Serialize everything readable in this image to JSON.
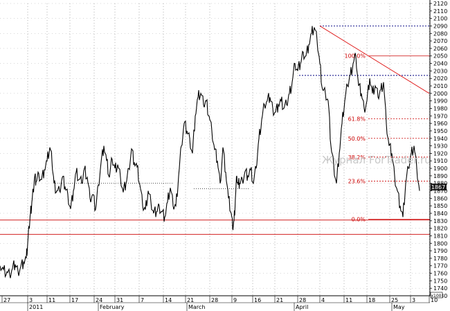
{
  "chart_data": {
    "type": "line",
    "title": "",
    "xlabel": "",
    "ylabel": "",
    "ylim": [
      1730,
      2120
    ],
    "yticks": [
      1730,
      1740,
      1750,
      1760,
      1770,
      1780,
      1790,
      1800,
      1810,
      1820,
      1830,
      1840,
      1850,
      1860,
      1870,
      1880,
      1890,
      1900,
      1910,
      1920,
      1930,
      1940,
      1950,
      1960,
      1970,
      1980,
      1990,
      2000,
      2010,
      2020,
      2030,
      2040,
      2050,
      2060,
      2070,
      2080,
      2090,
      2100,
      2110,
      2120
    ],
    "yticks_labels": [
      "1730",
      "1740",
      "1750",
      "1760",
      "1770",
      "1780",
      "1790",
      "1800",
      "1810",
      "1820",
      "1830",
      "1840",
      "1850",
      "1860",
      "1870",
      "1880",
      "1890",
      "1900",
      "1910",
      "1920",
      "1930",
      "1940",
      "1950",
      "1960",
      "1970",
      "1980",
      "1990",
      "2000",
      "2010",
      "2020",
      "2030",
      "2040",
      "2050",
      "2060",
      "2070",
      "2080",
      "2090",
      "2100",
      "2110",
      "2120"
    ],
    "x_day_labels": [
      "27",
      "3",
      "11",
      "17",
      "24",
      "31",
      "7",
      "14",
      "21",
      "28",
      "9",
      "16",
      "21",
      "28",
      "4",
      "11",
      "18",
      "25",
      "3",
      "10"
    ],
    "x_month_labels": [
      "2011",
      "February",
      "March",
      "April",
      "May"
    ],
    "last_price_label": "1867",
    "scale_label": "x100",
    "watermark": "Журнал ForTrader.ru",
    "series": [
      {
        "x": [
          0,
          5,
          10,
          14,
          18,
          22,
          26,
          30,
          34,
          38,
          40,
          42,
          44,
          46,
          48,
          50,
          52,
          56,
          60,
          64,
          68,
          72,
          75,
          78,
          82,
          86,
          90,
          94,
          98,
          102,
          106,
          110,
          114,
          118,
          122,
          126,
          130,
          134,
          138,
          142,
          146,
          150,
          154,
          158,
          162,
          166,
          170,
          174,
          178,
          182,
          186,
          190,
          194,
          198,
          202,
          206,
          210,
          214,
          218,
          222,
          226,
          230,
          234,
          238,
          242,
          246,
          250,
          254,
          258,
          262,
          266,
          270,
          274,
          278,
          282,
          286,
          290,
          294,
          298,
          302,
          306,
          310,
          314,
          318,
          322,
          326,
          330,
          334,
          336,
          338,
          340,
          342,
          344,
          346,
          350,
          354,
          358,
          362,
          366,
          370,
          374,
          378,
          382,
          386,
          390,
          394,
          398,
          402,
          406,
          410,
          414,
          418,
          422,
          426,
          430,
          434,
          438,
          442,
          446,
          450,
          454,
          458,
          462,
          466,
          470,
          474,
          478,
          482,
          486,
          490,
          494,
          498,
          502,
          506,
          510,
          514,
          518,
          522,
          526,
          530,
          534,
          538,
          542,
          546,
          550,
          554,
          558,
          562,
          566,
          570,
          574,
          578,
          582,
          586,
          590,
          594,
          598,
          602,
          606
        ],
        "y": [
          1770,
          1765,
          1762,
          1758,
          1766,
          1772,
          1763,
          1769,
          1775,
          1780,
          1800,
          1820,
          1840,
          1855,
          1870,
          1888,
          1882,
          1893,
          1885,
          1898,
          1910,
          1928,
          1910,
          1880,
          1870,
          1870,
          1888,
          1875,
          1865,
          1846,
          1870,
          1895,
          1885,
          1880,
          1900,
          1888,
          1860,
          1865,
          1845,
          1878,
          1908,
          1930,
          1910,
          1888,
          1912,
          1900,
          1905,
          1888,
          1868,
          1880,
          1900,
          1926,
          1908,
          1902,
          1878,
          1850,
          1845,
          1870,
          1855,
          1840,
          1842,
          1850,
          1842,
          1835,
          1855,
          1874,
          1850,
          1850,
          1890,
          1930,
          1960,
          1950,
          1940,
          1920,
          1970,
          1995,
          2000,
          1985,
          1990,
          1970,
          1950,
          1925,
          1910,
          1880,
          1928,
          1895,
          1860,
          1840,
          1820,
          1830,
          1860,
          1890,
          1878,
          1880,
          1885,
          1896,
          1890,
          1898,
          1880,
          1900,
          1940,
          1965,
          1985,
          1990,
          1995,
          1980,
          1975,
          1985,
          1990,
          1980,
          1985,
          2000,
          2015,
          2040,
          2030,
          2040,
          2055,
          2050,
          2065,
          2080,
          2088,
          2070,
          2040,
          2005,
          2000,
          1990,
          1930,
          1905,
          1880,
          1920,
          1960,
          1990,
          2010,
          2025,
          2040,
          2050,
          2010,
          2000,
          1980,
          1990,
          2020,
          2000,
          2010,
          1995,
          2005,
          2015,
          1960,
          1930,
          1920,
          1890,
          1870,
          1850,
          1835,
          1880,
          1900,
          1920,
          1930,
          1900,
          1870
        ]
      }
    ],
    "trendline": {
      "x": [
        462,
        620
      ],
      "y": [
        2090,
        2000
      ]
    },
    "horizontal_lines": [
      {
        "y": 2090,
        "x_start": 462,
        "style": "dotted",
        "color": "#000080"
      },
      {
        "y": 2024,
        "x_start": 432,
        "style": "dotted",
        "color": "#000080"
      },
      {
        "y": 1831,
        "x_start": 0,
        "style": "solid",
        "color": "#cc0000"
      },
      {
        "y": 1812,
        "x_start": 0,
        "style": "solid",
        "color": "#cc0000"
      }
    ],
    "fib_levels": [
      {
        "label": "100.0%",
        "y": 2050
      },
      {
        "label": "61.8%",
        "y": 1966
      },
      {
        "label": "50.0%",
        "y": 1940
      },
      {
        "label": "38.2%",
        "y": 1915
      },
      {
        "label": "23.6%",
        "y": 1883
      },
      {
        "label": "0.0%",
        "y": 1832
      }
    ],
    "dotted_supports": [
      {
        "y": 1880,
        "x_range": [
          80,
          250
        ]
      },
      {
        "y": 1873,
        "x_range": [
          280,
          360
        ]
      }
    ]
  }
}
